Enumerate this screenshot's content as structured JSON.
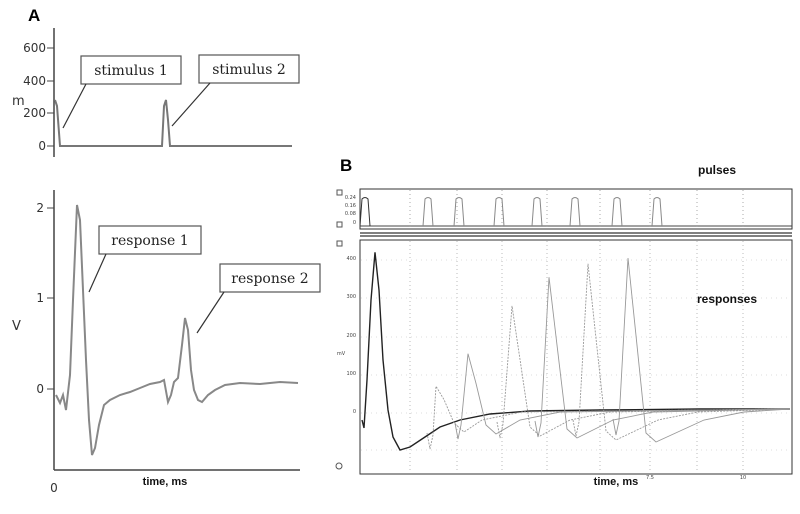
{
  "panels": {
    "a": "A",
    "b": "B"
  },
  "panel_a": {
    "stim_yticks": [
      "600",
      "400",
      "200",
      "0"
    ],
    "stim_ylabel": "m",
    "resp_yticks": [
      "2",
      "1",
      "0"
    ],
    "resp_ylabel": "V",
    "x_origin_label": "0",
    "xlabel": "time, ms",
    "callouts": {
      "stimulus1": "stimulus 1",
      "stimulus2": "stimulus 2",
      "response1": "response 1",
      "response2": "response 2"
    }
  },
  "panel_b": {
    "pulses_label": "pulses",
    "responses_label": "responses",
    "xlabel": "time, ms",
    "pulse_yticks": [
      "0.24",
      "0.16",
      "0.08",
      "0"
    ],
    "resp_yticks": [
      "400",
      "300",
      "200",
      "100",
      "0"
    ],
    "resp_ylabel": "mV",
    "x_ticks": [
      "7.5",
      "10"
    ]
  },
  "chart_data": [
    {
      "type": "line",
      "title": "",
      "xlabel": "time, ms",
      "ylabel": "mV",
      "ylim": [
        0,
        600
      ],
      "series": [
        {
          "name": "stimulus 1",
          "x": [
            0,
            0.5,
            1.2
          ],
          "values": [
            260,
            200,
            0
          ]
        },
        {
          "name": "stimulus 2",
          "x": [
            10.3,
            10.8,
            11.5
          ],
          "values": [
            0,
            240,
            0
          ]
        }
      ],
      "x_range": [
        0,
        24
      ],
      "grid": false
    },
    {
      "type": "line",
      "title": "",
      "xlabel": "time, ms",
      "ylabel": "V",
      "ylim": [
        -0.75,
        2.2
      ],
      "series": [
        {
          "name": "response 1",
          "x": [
            1.5,
            3,
            4,
            5,
            7
          ],
          "values": [
            0,
            2.05,
            0.7,
            -0.7,
            0
          ]
        },
        {
          "name": "response 2",
          "x": [
            11,
            12,
            12.8,
            13.8,
            17,
            24
          ],
          "values": [
            0.05,
            0.15,
            0.85,
            -0.1,
            0.08,
            0.08
          ]
        }
      ],
      "x_range": [
        0,
        24
      ],
      "grid": false
    },
    {
      "type": "line",
      "title": "",
      "xlabel": "time, ms",
      "ylabel": "mV",
      "ylim": [
        -100,
        430
      ],
      "series": [
        {
          "name": "pulses",
          "onsets": [
            0.1,
            1.3,
            1.9,
            2.7,
            3.5,
            4.3,
            5.0,
            5.9
          ],
          "amplitude": 0.24
        },
        {
          "name": "responses",
          "peaks": [
            420,
            70,
            155,
            280,
            355,
            390,
            405
          ]
        }
      ],
      "x_ticks": [
        "7.5",
        "10"
      ],
      "grid": true
    }
  ]
}
